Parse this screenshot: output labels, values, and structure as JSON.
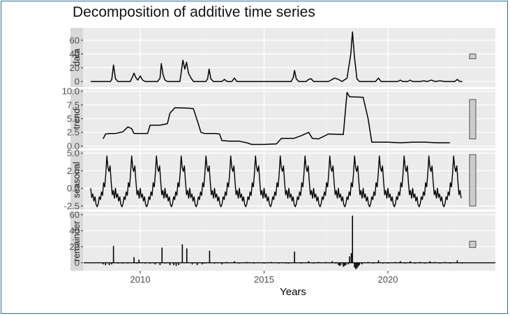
{
  "chart_data": {
    "type": "line",
    "title": "Decomposition of additive time series",
    "xlabel": "Years",
    "ylabel": "",
    "xlim": [
      2008,
      2023
    ],
    "x_ticks": [
      2010,
      2015,
      2020
    ],
    "x_tick_labels": [
      "2010",
      "2015",
      "2020"
    ],
    "grid": true,
    "panels": [
      {
        "name": "data",
        "style": "line",
        "ylim": [
          -8,
          78
        ],
        "y_ticks": [
          0,
          20,
          40,
          60
        ],
        "y_tick_labels": [
          "0",
          "20",
          "40",
          "60"
        ],
        "range_bar": [
          33,
          40
        ],
        "points": [
          [
            2008.0,
            0
          ],
          [
            2008.8,
            0
          ],
          [
            2008.85,
            3
          ],
          [
            2008.92,
            24
          ],
          [
            2009.0,
            4
          ],
          [
            2009.1,
            0
          ],
          [
            2009.6,
            0
          ],
          [
            2009.7,
            8
          ],
          [
            2009.75,
            12
          ],
          [
            2009.82,
            6
          ],
          [
            2009.9,
            2
          ],
          [
            2010.0,
            8
          ],
          [
            2010.1,
            2
          ],
          [
            2010.2,
            0
          ],
          [
            2010.7,
            0
          ],
          [
            2010.8,
            5
          ],
          [
            2010.85,
            26
          ],
          [
            2010.92,
            10
          ],
          [
            2011.0,
            2
          ],
          [
            2011.1,
            0
          ],
          [
            2011.6,
            0
          ],
          [
            2011.65,
            12
          ],
          [
            2011.72,
            31
          ],
          [
            2011.8,
            18
          ],
          [
            2011.87,
            28
          ],
          [
            2011.95,
            12
          ],
          [
            2012.05,
            5
          ],
          [
            2012.15,
            0
          ],
          [
            2012.65,
            0
          ],
          [
            2012.72,
            4
          ],
          [
            2012.78,
            18
          ],
          [
            2012.85,
            4
          ],
          [
            2012.95,
            0
          ],
          [
            2013.3,
            0
          ],
          [
            2013.4,
            3
          ],
          [
            2013.5,
            0
          ],
          [
            2013.7,
            0
          ],
          [
            2013.8,
            5
          ],
          [
            2013.9,
            0
          ],
          [
            2016.1,
            0
          ],
          [
            2016.18,
            6
          ],
          [
            2016.23,
            16
          ],
          [
            2016.3,
            4
          ],
          [
            2016.4,
            0
          ],
          [
            2016.7,
            0
          ],
          [
            2016.8,
            3
          ],
          [
            2016.9,
            4
          ],
          [
            2017.0,
            0
          ],
          [
            2017.6,
            0
          ],
          [
            2017.75,
            3
          ],
          [
            2017.85,
            5
          ],
          [
            2018.0,
            3
          ],
          [
            2018.15,
            0
          ],
          [
            2018.35,
            5
          ],
          [
            2018.5,
            40
          ],
          [
            2018.57,
            72
          ],
          [
            2018.65,
            35
          ],
          [
            2018.75,
            4
          ],
          [
            2018.85,
            0
          ],
          [
            2019.5,
            0
          ],
          [
            2019.62,
            5
          ],
          [
            2019.72,
            0
          ],
          [
            2020.4,
            0
          ],
          [
            2020.5,
            2
          ],
          [
            2020.6,
            0
          ],
          [
            2020.8,
            0
          ],
          [
            2020.9,
            2
          ],
          [
            2021.0,
            0
          ],
          [
            2021.3,
            0
          ],
          [
            2021.45,
            1
          ],
          [
            2021.6,
            0
          ],
          [
            2021.75,
            2
          ],
          [
            2021.9,
            0
          ],
          [
            2022.1,
            1
          ],
          [
            2022.3,
            0
          ],
          [
            2022.7,
            0
          ],
          [
            2022.8,
            3
          ],
          [
            2022.9,
            0
          ],
          [
            2023.0,
            0
          ]
        ]
      },
      {
        "name": "trend",
        "style": "line",
        "ylim": [
          -0.4,
          10.4
        ],
        "y_ticks": [
          0.0,
          2.5,
          5.0,
          7.5,
          10.0
        ],
        "y_tick_labels": [
          "0.0",
          "2.5",
          "5.0",
          "7.5",
          "10.0"
        ],
        "range_bar": [
          1.3,
          8.5
        ],
        "points": [
          [
            2008.5,
            1.3
          ],
          [
            2008.6,
            2.2
          ],
          [
            2008.8,
            2.3
          ],
          [
            2009.0,
            2.3
          ],
          [
            2009.3,
            2.6
          ],
          [
            2009.5,
            3.5
          ],
          [
            2009.65,
            3.2
          ],
          [
            2009.75,
            2.3
          ],
          [
            2010.3,
            2.3
          ],
          [
            2010.4,
            3.8
          ],
          [
            2010.8,
            3.8
          ],
          [
            2011.1,
            4.1
          ],
          [
            2011.2,
            6.0
          ],
          [
            2011.4,
            7.0
          ],
          [
            2012.0,
            6.9
          ],
          [
            2012.15,
            6.8
          ],
          [
            2012.35,
            4.0
          ],
          [
            2012.45,
            2.5
          ],
          [
            2012.6,
            2.3
          ],
          [
            2013.0,
            2.3
          ],
          [
            2013.2,
            2.2
          ],
          [
            2013.3,
            1.0
          ],
          [
            2013.6,
            0.9
          ],
          [
            2014.0,
            0.9
          ],
          [
            2014.3,
            0.6
          ],
          [
            2014.5,
            0.3
          ],
          [
            2015.0,
            0.3
          ],
          [
            2015.5,
            0.4
          ],
          [
            2015.7,
            1.4
          ],
          [
            2016.2,
            1.4
          ],
          [
            2016.5,
            1.9
          ],
          [
            2016.8,
            2.5
          ],
          [
            2016.95,
            1.4
          ],
          [
            2017.2,
            1.3
          ],
          [
            2017.6,
            2.2
          ],
          [
            2018.2,
            2.1
          ],
          [
            2018.35,
            9.8
          ],
          [
            2018.45,
            9.0
          ],
          [
            2019.0,
            8.9
          ],
          [
            2019.2,
            5.0
          ],
          [
            2019.35,
            0.7
          ],
          [
            2020.0,
            0.7
          ],
          [
            2020.5,
            0.6
          ],
          [
            2021.0,
            0.7
          ],
          [
            2021.5,
            0.7
          ],
          [
            2022.0,
            0.6
          ],
          [
            2022.5,
            0.6
          ]
        ]
      },
      {
        "name": "seasonal",
        "style": "seasonal",
        "ylim": [
          -3.0,
          5.4
        ],
        "y_ticks": [
          -2.5,
          0.0,
          2.5,
          5.0
        ],
        "y_tick_labels": [
          "-2.5",
          "0.0",
          "2.5",
          "5.0"
        ],
        "range_bar": [
          -2.5,
          4.8
        ],
        "x_start": 2008.0,
        "x_end": 2023.0,
        "period_years": 1.0,
        "cycle": [
          0.0,
          -1.3,
          -0.8,
          -1.8,
          -1.2,
          -2.3,
          -2.6,
          -2.2,
          -1.2,
          -1.6,
          -0.5,
          -1.0,
          0.8,
          0.2,
          2.0,
          4.6,
          3.0,
          2.4,
          3.2,
          1.0,
          -0.9,
          -0.3,
          -1.4
        ]
      },
      {
        "name": "remainder",
        "style": "bars",
        "ylim": [
          -10,
          64
        ],
        "y_ticks": [
          0,
          20,
          40,
          60
        ],
        "y_tick_labels": [
          "0",
          "20",
          "40",
          "60"
        ],
        "range_bar": [
          19,
          27
        ],
        "x_range": [
          2008.0,
          2023.0
        ],
        "bars": [
          [
            2008.5,
            -2
          ],
          [
            2008.6,
            -3
          ],
          [
            2008.75,
            -3
          ],
          [
            2008.85,
            -2
          ],
          [
            2008.92,
            21
          ],
          [
            2009.1,
            -1
          ],
          [
            2009.3,
            -1
          ],
          [
            2009.5,
            -1
          ],
          [
            2009.75,
            7
          ],
          [
            2009.85,
            -1
          ],
          [
            2009.95,
            4
          ],
          [
            2010.2,
            -1
          ],
          [
            2010.4,
            -1
          ],
          [
            2010.6,
            -2
          ],
          [
            2010.8,
            -3
          ],
          [
            2010.88,
            19
          ],
          [
            2011.0,
            -1
          ],
          [
            2011.2,
            -3
          ],
          [
            2011.35,
            -3
          ],
          [
            2011.45,
            -4
          ],
          [
            2011.55,
            -3
          ],
          [
            2011.7,
            23
          ],
          [
            2011.88,
            18
          ],
          [
            2012.1,
            -2
          ],
          [
            2012.3,
            -3
          ],
          [
            2012.5,
            -2
          ],
          [
            2012.6,
            -1
          ],
          [
            2012.8,
            15
          ],
          [
            2013.0,
            -1
          ],
          [
            2013.3,
            -2
          ],
          [
            2013.5,
            1
          ],
          [
            2013.8,
            2
          ],
          [
            2014.0,
            -1
          ],
          [
            2014.3,
            1
          ],
          [
            2014.6,
            -1
          ],
          [
            2015.0,
            -1
          ],
          [
            2015.3,
            1
          ],
          [
            2015.6,
            -1
          ],
          [
            2015.9,
            -1
          ],
          [
            2016.0,
            -1
          ],
          [
            2016.23,
            14
          ],
          [
            2016.5,
            -1
          ],
          [
            2016.8,
            2
          ],
          [
            2017.0,
            -1
          ],
          [
            2017.2,
            1
          ],
          [
            2017.5,
            1
          ],
          [
            2017.75,
            2
          ],
          [
            2017.9,
            -1
          ],
          [
            2018.0,
            -3
          ],
          [
            2018.05,
            -4
          ],
          [
            2018.1,
            -3
          ],
          [
            2018.2,
            -5
          ],
          [
            2018.25,
            -4
          ],
          [
            2018.3,
            -3
          ],
          [
            2018.4,
            -2
          ],
          [
            2018.45,
            8
          ],
          [
            2018.52,
            12
          ],
          [
            2018.57,
            59
          ],
          [
            2018.65,
            -6
          ],
          [
            2018.7,
            -8
          ],
          [
            2018.75,
            -7
          ],
          [
            2018.8,
            -5
          ],
          [
            2018.85,
            -3
          ],
          [
            2018.95,
            -2
          ],
          [
            2019.2,
            1
          ],
          [
            2019.4,
            -1
          ],
          [
            2019.62,
            3
          ],
          [
            2019.8,
            -1
          ],
          [
            2020.0,
            -1
          ],
          [
            2020.3,
            1
          ],
          [
            2020.5,
            2
          ],
          [
            2020.7,
            -1
          ],
          [
            2020.9,
            2
          ],
          [
            2021.1,
            -1
          ],
          [
            2021.3,
            1
          ],
          [
            2021.5,
            -1
          ],
          [
            2021.7,
            2
          ],
          [
            2021.9,
            1
          ],
          [
            2022.1,
            -1
          ],
          [
            2022.3,
            1
          ],
          [
            2022.5,
            -1
          ],
          [
            2022.8,
            3
          ],
          [
            2023.0,
            -1
          ]
        ]
      }
    ]
  }
}
